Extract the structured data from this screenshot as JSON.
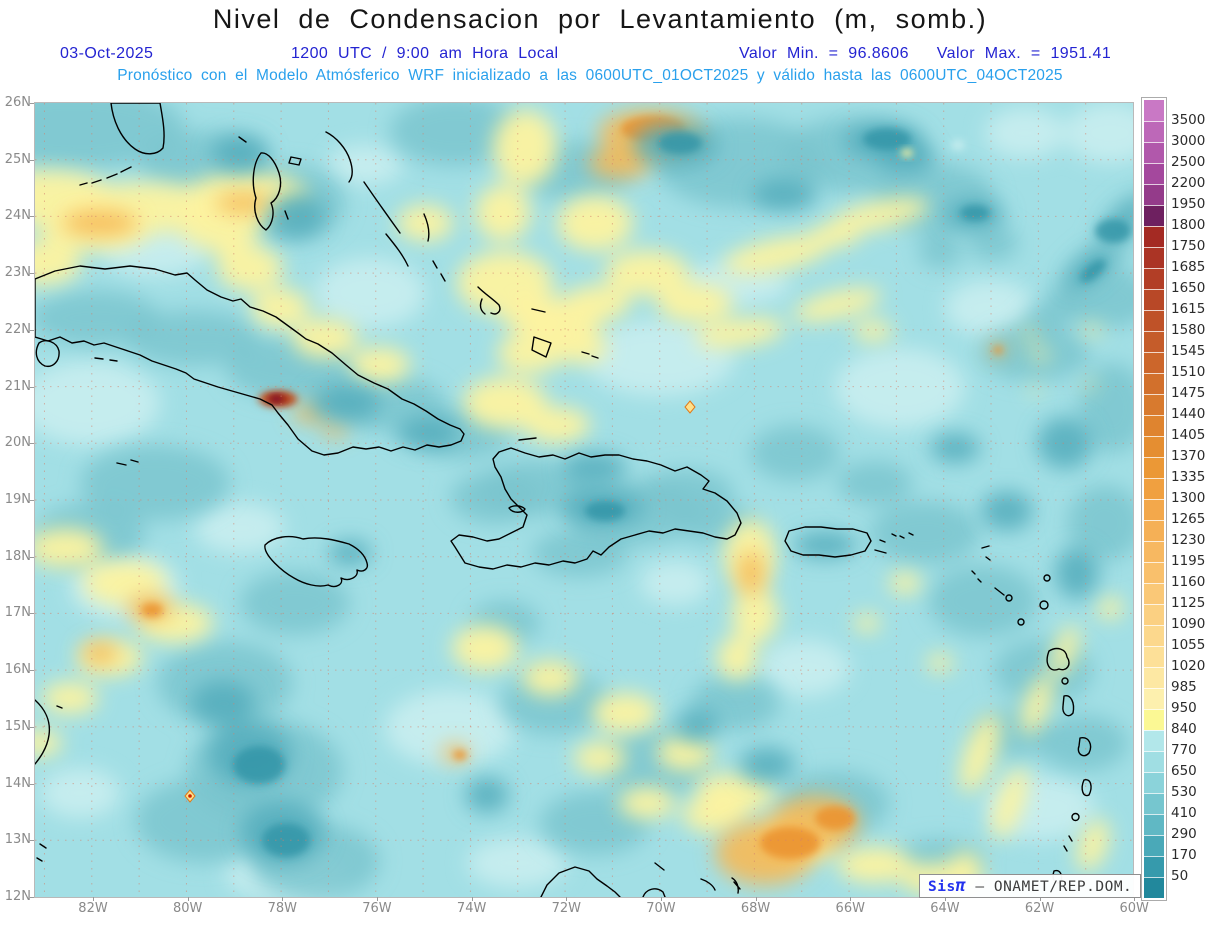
{
  "header": {
    "title": "Nivel de Condensacion por Levantamiento (m, somb.)",
    "date": "03-Oct-2025",
    "time": "1200 UTC / 9:00 am Hora Local",
    "value_min_label": "Valor Min. = 96.8606",
    "value_max_label": "Valor Max. = 1951.41",
    "forecast_line": "Pronóstico con el Modelo Atmósferico WRF inicializado a las 0600UTC_01OCT2025 y válido hasta las  0600UTC_04OCT2025"
  },
  "watermark": {
    "system": "Sis",
    "pi": "π",
    "org": "– ONAMET/REP.DOM."
  },
  "axes": {
    "lat": [
      "26N",
      "25N",
      "24N",
      "23N",
      "22N",
      "21N",
      "20N",
      "19N",
      "18N",
      "17N",
      "16N",
      "15N",
      "14N",
      "13N",
      "12N"
    ],
    "lon": [
      "82W",
      "80W",
      "78W",
      "76W",
      "74W",
      "72W",
      "70W",
      "68W",
      "66W",
      "64W",
      "62W",
      "60W"
    ]
  },
  "colorbar": {
    "levels": [
      3500,
      3000,
      2500,
      2200,
      1950,
      1800,
      1750,
      1685,
      1650,
      1615,
      1580,
      1545,
      1510,
      1475,
      1440,
      1405,
      1370,
      1335,
      1300,
      1265,
      1230,
      1195,
      1160,
      1125,
      1090,
      1055,
      1020,
      985,
      950,
      840,
      770,
      650,
      530,
      410,
      290,
      170,
      50
    ],
    "colors": [
      "#c978c5",
      "#bd68b8",
      "#b158ab",
      "#a4489d",
      "#943b8a",
      "#6e2060",
      "#a42a23",
      "#ab3425",
      "#b23e26",
      "#b84827",
      "#bf5228",
      "#c55c2a",
      "#cc662b",
      "#d2702c",
      "#d87a2e",
      "#df842f",
      "#e58e31",
      "#eb9836",
      "#f0a040",
      "#f3a84b",
      "#f5b056",
      "#f7b861",
      "#f9c06c",
      "#fac877",
      "#fbd082",
      "#fcd88d",
      "#fde098",
      "#fde8a3",
      "#fdf0ae",
      "#fbf894",
      "#b2e7ea",
      "#a0dee3",
      "#8bd3da",
      "#76c6cf",
      "#60b8c4",
      "#4aa9b8",
      "#369aac",
      "#22889c"
    ]
  },
  "chart_data": {
    "type": "heatmap",
    "title": "Nivel de Condensacion por Levantamiento",
    "units": "m",
    "shading_note": "somb.",
    "model": "WRF",
    "run_init": "0600UTC_01OCT2025",
    "valid_until": "0600UTC_04OCT2025",
    "valid_time": "03-Oct-2025 1200 UTC / 9:00 am Hora Local",
    "value_min": 96.8606,
    "value_max": 1951.41,
    "lat_range_n": [
      12,
      26
    ],
    "lon_range_w": [
      83.2,
      60
    ],
    "grid": "dotted 1-degree graticule",
    "legend_position": "right",
    "region": "Caribbean: Cuba, Jamaica, Hispaniola, Puerto Rico, Bahamas, Lesser Antilles"
  }
}
